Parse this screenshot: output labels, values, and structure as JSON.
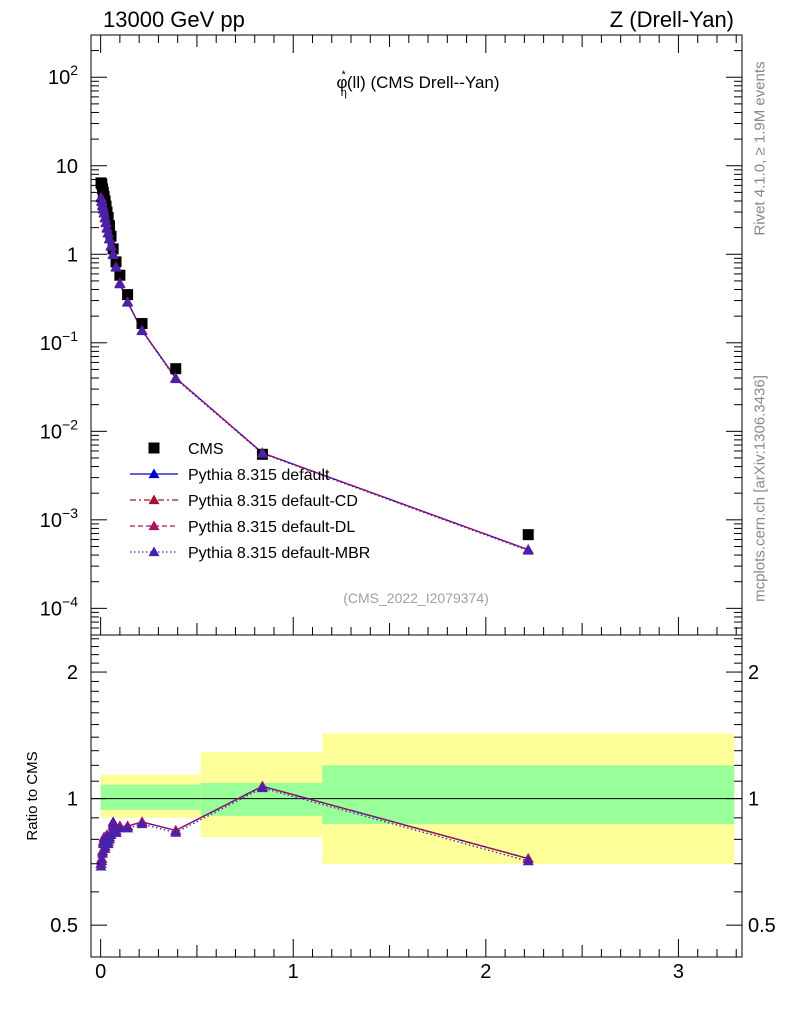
{
  "header": {
    "left": "13000 GeV pp",
    "right": "Z (Drell-Yan)"
  },
  "side_labels": {
    "rivet": "Rivet 4.1.0, ≥ 1.9M events",
    "mcplots": "mcplots.cern.ch [arXiv:1306.3436]"
  },
  "chart_data": [
    {
      "type": "scatter",
      "panel": "main",
      "title": "φ*η(ll) (CMS Drell--Yan)",
      "title_parts": {
        "symbol": "φ",
        "sup": "*",
        "sub": "η",
        "rest": "(ll) (CMS Drell--Yan)"
      },
      "watermark": "(CMS_2022_I2079374)",
      "yscale": "log",
      "ylim": [
        5e-05,
        300
      ],
      "xlim": [
        -0.05,
        3.33
      ],
      "ytick_labels": [
        "10^2",
        "10",
        "1",
        "10^-1",
        "10^-2",
        "10^-3",
        "10^-4"
      ],
      "legend_position": "bottom-left",
      "series": [
        {
          "name": "CMS",
          "marker": "square",
          "color": "#000000",
          "x": [
            0.002,
            0.006,
            0.01,
            0.014,
            0.018,
            0.023,
            0.028,
            0.033,
            0.039,
            0.046,
            0.054,
            0.065,
            0.08,
            0.1,
            0.14,
            0.215,
            0.39,
            0.84,
            2.22
          ],
          "y": [
            6.4,
            6.2,
            5.5,
            5.0,
            4.5,
            4.0,
            3.5,
            3.0,
            2.6,
            2.1,
            1.6,
            1.15,
            0.82,
            0.58,
            0.35,
            0.165,
            0.051,
            0.0055,
            0.00068
          ]
        },
        {
          "name": "Pythia 8.315 default",
          "marker": "triangle",
          "line": "solid",
          "color": "#0000cc",
          "x": [
            0.002,
            0.006,
            0.01,
            0.014,
            0.018,
            0.023,
            0.028,
            0.033,
            0.039,
            0.046,
            0.054,
            0.065,
            0.08,
            0.1,
            0.14,
            0.215,
            0.39,
            0.84,
            2.22
          ],
          "y": [
            4.4,
            4.0,
            3.6,
            3.3,
            2.95,
            2.6,
            2.3,
            2.0,
            1.75,
            1.5,
            1.25,
            1.0,
            0.72,
            0.47,
            0.29,
            0.138,
            0.04,
            0.0057,
            0.00046
          ]
        },
        {
          "name": "Pythia 8.315 default-CD",
          "marker": "triangle",
          "line": "dashdot",
          "color": "#aa1133",
          "x": [
            0.002,
            0.006,
            0.01,
            0.014,
            0.018,
            0.023,
            0.028,
            0.033,
            0.039,
            0.046,
            0.054,
            0.065,
            0.08,
            0.1,
            0.14,
            0.215,
            0.39,
            0.84,
            2.22
          ],
          "y": [
            4.4,
            4.0,
            3.6,
            3.3,
            2.95,
            2.6,
            2.3,
            2.0,
            1.75,
            1.5,
            1.25,
            1.0,
            0.72,
            0.47,
            0.29,
            0.138,
            0.04,
            0.0057,
            0.00046
          ]
        },
        {
          "name": "Pythia 8.315 default-DL",
          "marker": "triangle",
          "line": "dashed",
          "color": "#aa1166",
          "x": [
            0.002,
            0.006,
            0.01,
            0.014,
            0.018,
            0.023,
            0.028,
            0.033,
            0.039,
            0.046,
            0.054,
            0.065,
            0.08,
            0.1,
            0.14,
            0.215,
            0.39,
            0.84,
            2.22
          ],
          "y": [
            4.4,
            4.0,
            3.6,
            3.3,
            2.95,
            2.6,
            2.3,
            2.0,
            1.75,
            1.5,
            1.25,
            1.0,
            0.72,
            0.47,
            0.29,
            0.138,
            0.04,
            0.0057,
            0.00046
          ]
        },
        {
          "name": "Pythia 8.315 default-MBR",
          "marker": "triangle",
          "line": "dotted",
          "color": "#4422aa",
          "x": [
            0.002,
            0.006,
            0.01,
            0.014,
            0.018,
            0.023,
            0.028,
            0.033,
            0.039,
            0.046,
            0.054,
            0.065,
            0.08,
            0.1,
            0.14,
            0.215,
            0.39,
            0.84,
            2.22
          ],
          "y": [
            4.3,
            3.9,
            3.5,
            3.2,
            2.9,
            2.55,
            2.25,
            1.95,
            1.72,
            1.48,
            1.22,
            0.98,
            0.71,
            0.46,
            0.285,
            0.136,
            0.039,
            0.0056,
            0.00045
          ]
        }
      ]
    },
    {
      "type": "line",
      "panel": "ratio",
      "ylabel": "Ratio to CMS",
      "yscale": "log",
      "ylim": [
        0.42,
        2.45
      ],
      "xlim": [
        -0.05,
        3.33
      ],
      "ytick_labels": [
        "2",
        "1",
        "0.5"
      ],
      "xtick_labels": [
        "0",
        "1",
        "2",
        "3"
      ],
      "bands": {
        "x_edges": [
          0.0,
          0.52,
          1.15,
          3.29
        ],
        "inner_lo": [
          0.94,
          0.91,
          0.87
        ],
        "inner_hi": [
          1.08,
          1.09,
          1.2
        ],
        "outer_lo": [
          0.9,
          0.81,
          0.7
        ],
        "outer_hi": [
          1.14,
          1.29,
          1.43
        ],
        "inner_color": "#99ff99",
        "outer_color": "#ffff99"
      },
      "series": [
        {
          "name": "Pythia 8.315 default",
          "color": "#0000cc",
          "x": [
            0.002,
            0.006,
            0.01,
            0.014,
            0.018,
            0.023,
            0.028,
            0.033,
            0.039,
            0.046,
            0.054,
            0.065,
            0.08,
            0.1,
            0.14,
            0.215,
            0.39,
            0.84,
            2.22
          ],
          "y": [
            0.7,
            0.72,
            0.75,
            0.79,
            0.81,
            0.77,
            0.8,
            0.82,
            0.79,
            0.81,
            0.83,
            0.88,
            0.83,
            0.86,
            0.86,
            0.88,
            0.84,
            1.07,
            0.72
          ]
        },
        {
          "name": "Pythia 8.315 default-CD",
          "color": "#aa1133",
          "x": [
            0.002,
            0.006,
            0.01,
            0.014,
            0.018,
            0.023,
            0.028,
            0.033,
            0.039,
            0.046,
            0.054,
            0.065,
            0.08,
            0.1,
            0.14,
            0.215,
            0.39,
            0.84,
            2.22
          ],
          "y": [
            0.7,
            0.72,
            0.75,
            0.79,
            0.81,
            0.77,
            0.8,
            0.82,
            0.79,
            0.81,
            0.83,
            0.87,
            0.84,
            0.86,
            0.86,
            0.88,
            0.84,
            1.07,
            0.72
          ]
        },
        {
          "name": "Pythia 8.315 default-DL",
          "color": "#aa1166",
          "x": [
            0.002,
            0.006,
            0.01,
            0.014,
            0.018,
            0.023,
            0.028,
            0.033,
            0.039,
            0.046,
            0.054,
            0.065,
            0.08,
            0.1,
            0.14,
            0.215,
            0.39,
            0.84,
            2.22
          ],
          "y": [
            0.7,
            0.72,
            0.75,
            0.79,
            0.81,
            0.77,
            0.8,
            0.82,
            0.79,
            0.81,
            0.83,
            0.87,
            0.84,
            0.86,
            0.86,
            0.88,
            0.84,
            1.07,
            0.72
          ]
        },
        {
          "name": "Pythia 8.315 default-MBR",
          "color": "#4422aa",
          "x": [
            0.002,
            0.006,
            0.01,
            0.014,
            0.018,
            0.023,
            0.028,
            0.033,
            0.039,
            0.046,
            0.054,
            0.065,
            0.08,
            0.1,
            0.14,
            0.215,
            0.39,
            0.84,
            2.22
          ],
          "y": [
            0.69,
            0.71,
            0.74,
            0.78,
            0.8,
            0.76,
            0.79,
            0.81,
            0.78,
            0.8,
            0.82,
            0.86,
            0.83,
            0.85,
            0.85,
            0.87,
            0.83,
            1.06,
            0.71
          ]
        }
      ]
    }
  ]
}
